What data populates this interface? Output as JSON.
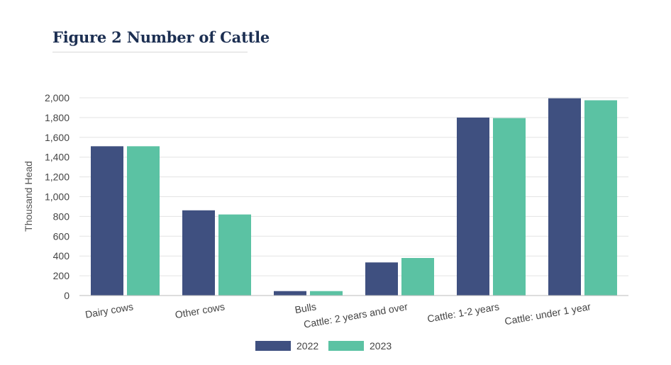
{
  "title": "Figure 2 Number of Cattle",
  "chart_data": {
    "type": "bar",
    "categories": [
      "Dairy cows",
      "Other cows",
      "Bulls",
      "Cattle: 2 years and over",
      "Cattle: 1-2 years",
      "Cattle: under 1 year"
    ],
    "series": [
      {
        "name": "2022",
        "color": "#3f5080",
        "values": [
          1510,
          862,
          45,
          335,
          1800,
          1995
        ]
      },
      {
        "name": "2023",
        "color": "#5bc2a3",
        "values": [
          1510,
          820,
          45,
          380,
          1795,
          1975
        ]
      }
    ],
    "ylabel": "Thousand Head",
    "xlabel": "",
    "ylim": [
      0,
      2000
    ],
    "yticks": [
      "0",
      "200",
      "400",
      "600",
      "800",
      "1,000",
      "1,200",
      "1,400",
      "1,600",
      "1,800",
      "2,000"
    ],
    "grid": true,
    "legend_position": "bottom"
  }
}
